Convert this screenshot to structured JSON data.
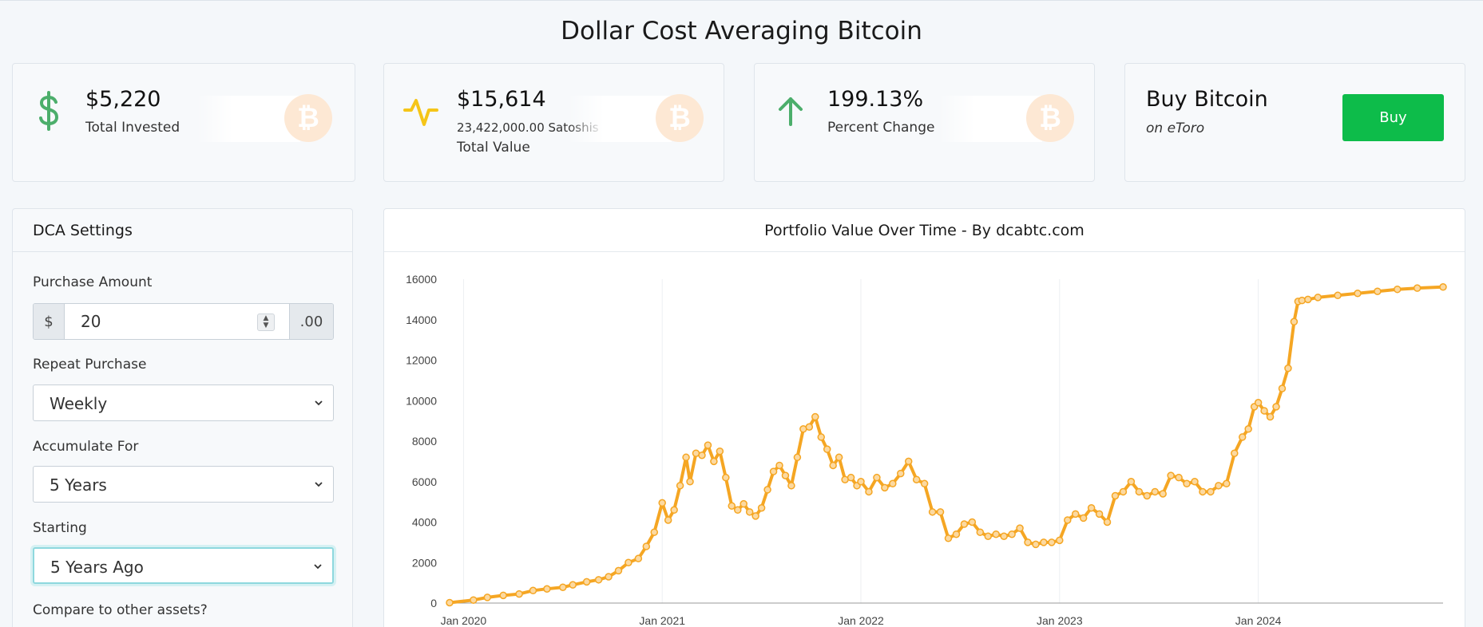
{
  "page": {
    "title": "Dollar Cost Averaging Bitcoin"
  },
  "stats": [
    {
      "value": "$5,220",
      "label": "Total Invested",
      "icon": "dollar-icon",
      "color": "#4cae6b"
    },
    {
      "value": "$15,614",
      "sub": "23,422,000.00 Satoshis",
      "label": "Total Value",
      "icon": "pulse-icon",
      "color": "#f5c518"
    },
    {
      "value": "199.13%",
      "label": "Percent Change",
      "icon": "arrow-up-icon",
      "color": "#4cae6b"
    }
  ],
  "buy": {
    "title": "Buy Bitcoin",
    "subtitle": "on eToro",
    "button": "Buy",
    "button_color": "#0dbc4a"
  },
  "btc_glyph": "₿",
  "settings": {
    "title": "DCA Settings",
    "purchase_amount": {
      "label": "Purchase Amount",
      "prefix": "$",
      "value": "20",
      "suffix": ".00"
    },
    "repeat": {
      "label": "Repeat Purchase",
      "value": "Weekly"
    },
    "accumulate": {
      "label": "Accumulate For",
      "value": "5 Years"
    },
    "starting": {
      "label": "Starting",
      "value": "5 Years Ago"
    },
    "compare": {
      "label": "Compare to other assets?"
    }
  },
  "chart": {
    "title": "Portfolio Value Over Time - By dcabtc.com"
  },
  "chart_data": {
    "type": "line",
    "title": "Portfolio Value Over Time - By dcabtc.com",
    "xlabel": "",
    "ylabel": "",
    "ylim": [
      0,
      16000
    ],
    "yticks": [
      0,
      2000,
      4000,
      6000,
      8000,
      10000,
      12000,
      14000,
      16000
    ],
    "xticks": [
      "Jan 2020",
      "Jan 2021",
      "Jan 2022",
      "Jan 2023",
      "Jan 2024"
    ],
    "xrange": [
      2019.93,
      2024.93
    ],
    "grid": "vertical",
    "color": "#f5a623",
    "series": [
      {
        "x": [
          2019.93,
          2020.05,
          2020.12,
          2020.2,
          2020.28,
          2020.35,
          2020.42,
          2020.5,
          2020.55,
          2020.62,
          2020.68,
          2020.73,
          2020.78,
          2020.83,
          2020.88,
          2020.92,
          2020.96,
          2021.0,
          2021.03,
          2021.06,
          2021.09,
          2021.12,
          2021.14,
          2021.17,
          2021.2,
          2021.23,
          2021.26,
          2021.29,
          2021.32,
          2021.35,
          2021.38,
          2021.41,
          2021.44,
          2021.47,
          2021.5,
          2021.53,
          2021.56,
          2021.59,
          2021.62,
          2021.65,
          2021.68,
          2021.71,
          2021.74,
          2021.77,
          2021.8,
          2021.83,
          2021.86,
          2021.89,
          2021.92,
          2021.95,
          2021.98,
          2022.0,
          2022.04,
          2022.08,
          2022.12,
          2022.16,
          2022.2,
          2022.24,
          2022.28,
          2022.32,
          2022.36,
          2022.4,
          2022.44,
          2022.48,
          2022.52,
          2022.56,
          2022.6,
          2022.64,
          2022.68,
          2022.72,
          2022.76,
          2022.8,
          2022.84,
          2022.88,
          2022.92,
          2022.96,
          2023.0,
          2023.04,
          2023.08,
          2023.12,
          2023.16,
          2023.2,
          2023.24,
          2023.28,
          2023.32,
          2023.36,
          2023.4,
          2023.44,
          2023.48,
          2023.52,
          2023.56,
          2023.6,
          2023.64,
          2023.68,
          2023.72,
          2023.76,
          2023.8,
          2023.84,
          2023.88,
          2023.92,
          2023.95,
          2023.98,
          2024.0,
          2024.03,
          2024.06,
          2024.09,
          2024.12,
          2024.15,
          2024.18,
          2024.2,
          2024.22,
          2024.25,
          2024.3,
          2024.4,
          2024.5,
          2024.6,
          2024.7,
          2024.8,
          2024.93
        ],
        "y": [
          20,
          150,
          280,
          380,
          450,
          620,
          700,
          780,
          900,
          1050,
          1150,
          1300,
          1600,
          2000,
          2200,
          2800,
          3500,
          4950,
          4100,
          4600,
          5800,
          7200,
          6000,
          7400,
          7300,
          7800,
          7000,
          7500,
          6200,
          4800,
          4600,
          4900,
          4500,
          4300,
          4700,
          5600,
          6500,
          6800,
          6300,
          5800,
          7200,
          8600,
          8700,
          9200,
          8200,
          7600,
          6800,
          7200,
          6100,
          6200,
          5800,
          6000,
          5500,
          6200,
          5700,
          5900,
          6400,
          7000,
          6100,
          5900,
          4500,
          4500,
          3200,
          3400,
          3900,
          4000,
          3500,
          3300,
          3400,
          3300,
          3400,
          3700,
          3000,
          2900,
          3000,
          3000,
          3100,
          4100,
          4400,
          4200,
          4700,
          4400,
          4000,
          5300,
          5500,
          6000,
          5500,
          5300,
          5500,
          5400,
          6300,
          6200,
          5900,
          6000,
          5500,
          5500,
          5800,
          5900,
          7400,
          8200,
          8600,
          9700,
          9900,
          9500,
          9200,
          9700,
          10600,
          11600,
          13900,
          14900,
          14950,
          15000,
          15100,
          15200,
          15300,
          15400,
          15500,
          15560,
          15614
        ]
      }
    ]
  }
}
